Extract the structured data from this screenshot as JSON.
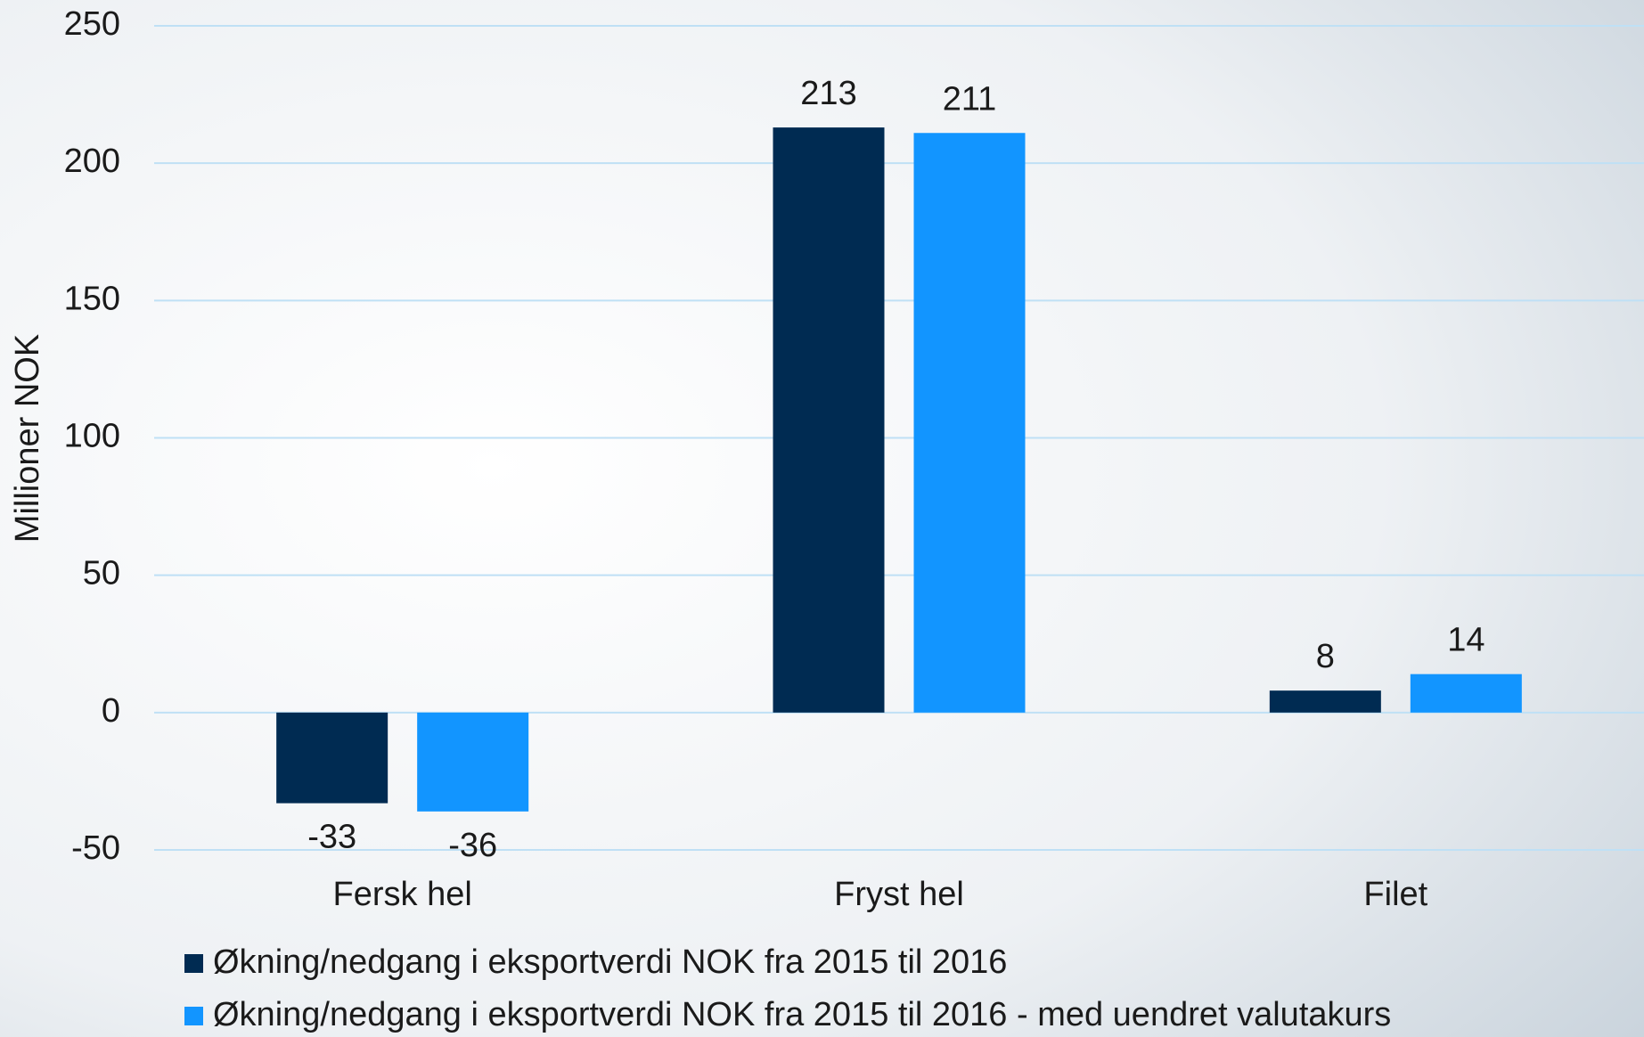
{
  "chart_data": {
    "type": "bar",
    "ylabel": "Millioner NOK",
    "categories": [
      "Fersk hel",
      "Fryst hel",
      "Filet"
    ],
    "series": [
      {
        "name": "Økning/nedgang i eksportverdi NOK fra 2015 til 2016",
        "color": "#002b52",
        "values": [
          -33,
          213,
          8
        ]
      },
      {
        "name": "Økning/nedgang i eksportverdi NOK fra 2015 til 2016 - med uendret valutakurs",
        "color": "#1295ff",
        "values": [
          -36,
          211,
          14
        ]
      }
    ],
    "ylim": [
      -50,
      250
    ],
    "yticks": [
      -50,
      0,
      50,
      100,
      150,
      200,
      250
    ],
    "grid": true,
    "legend": "bottom"
  }
}
